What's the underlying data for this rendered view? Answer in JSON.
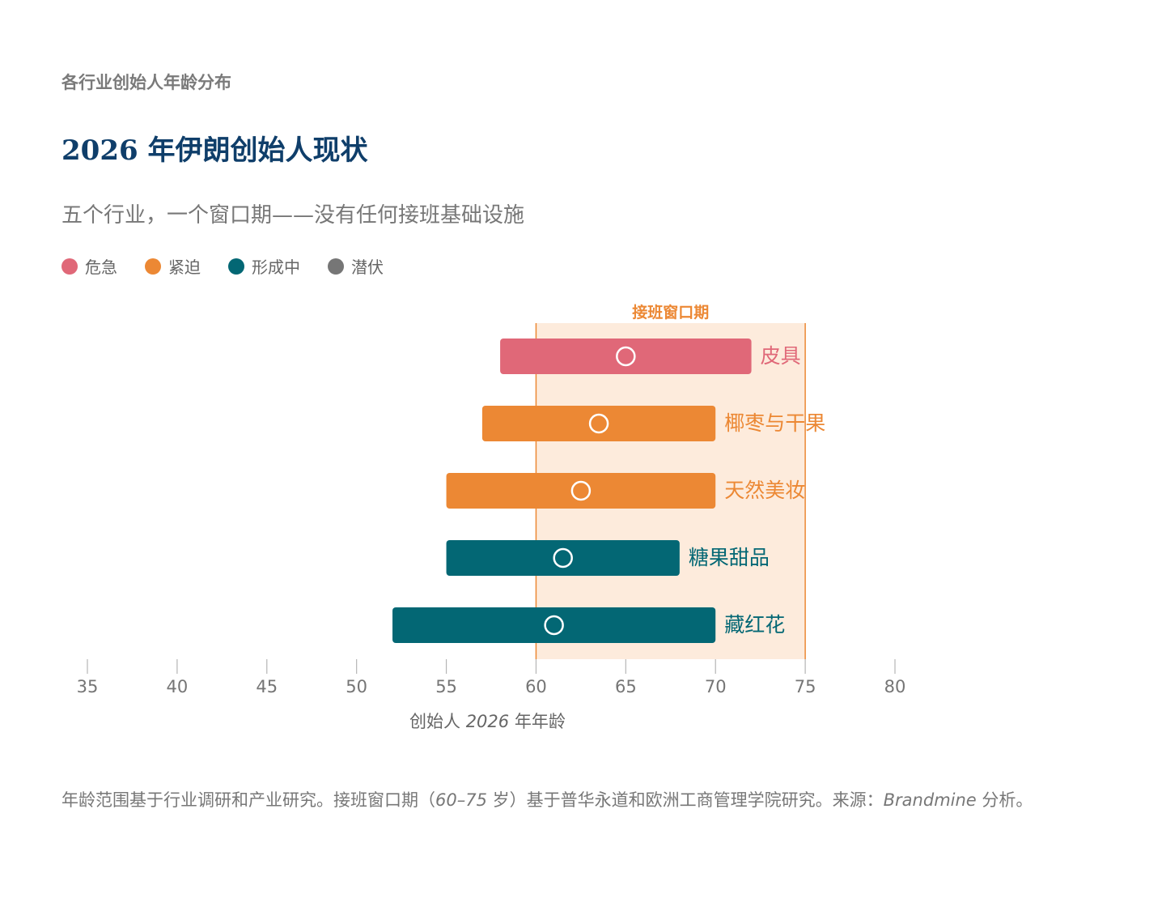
{
  "header": {
    "eyebrow": "各行业创始人年龄分布",
    "title": "2026 年伊朗创始人现状",
    "subtitle": "五个行业，一个窗口期——没有任何接班基础设施"
  },
  "legend": [
    {
      "label": "危急",
      "color": "#e06878"
    },
    {
      "label": "紧迫",
      "color": "#ec8834"
    },
    {
      "label": "形成中",
      "color": "#036774"
    },
    {
      "label": "潜伏",
      "color": "#767676"
    }
  ],
  "chart_data": {
    "type": "range-bar",
    "xlim": [
      35,
      80
    ],
    "xticks": [
      35,
      40,
      45,
      50,
      55,
      60,
      65,
      70,
      75,
      80
    ],
    "xlabel_prefix": "创始人 ",
    "xlabel_year": "2026",
    "xlabel_suffix": " 年年龄",
    "window": {
      "label": "接班窗口期",
      "start": 60,
      "end": 75,
      "color": "#ec8834",
      "fill": "#fdebdc"
    },
    "series": [
      {
        "name": "皮具",
        "min": 58,
        "max": 72,
        "median": 65,
        "status": "危急",
        "color": "#e06878"
      },
      {
        "name": "椰枣与干果",
        "min": 57,
        "max": 70,
        "median": 63.5,
        "status": "紧迫",
        "color": "#ec8834"
      },
      {
        "name": "天然美妆",
        "min": 55,
        "max": 70,
        "median": 62.5,
        "status": "紧迫",
        "color": "#ec8834"
      },
      {
        "name": "糖果甜品",
        "min": 55,
        "max": 68,
        "median": 61.5,
        "status": "形成中",
        "color": "#036774"
      },
      {
        "name": "藏红花",
        "min": 52,
        "max": 70,
        "median": 61,
        "status": "形成中",
        "color": "#036774"
      }
    ]
  },
  "footnote": {
    "part1": "年龄范围基于行业调研和产业研究。接班窗口期（",
    "range": "60–75",
    "part2": " 岁）基于普华永道和欧洲工商管理学院研究。来源：",
    "source": "Brandmine",
    "part3": " 分析。"
  }
}
